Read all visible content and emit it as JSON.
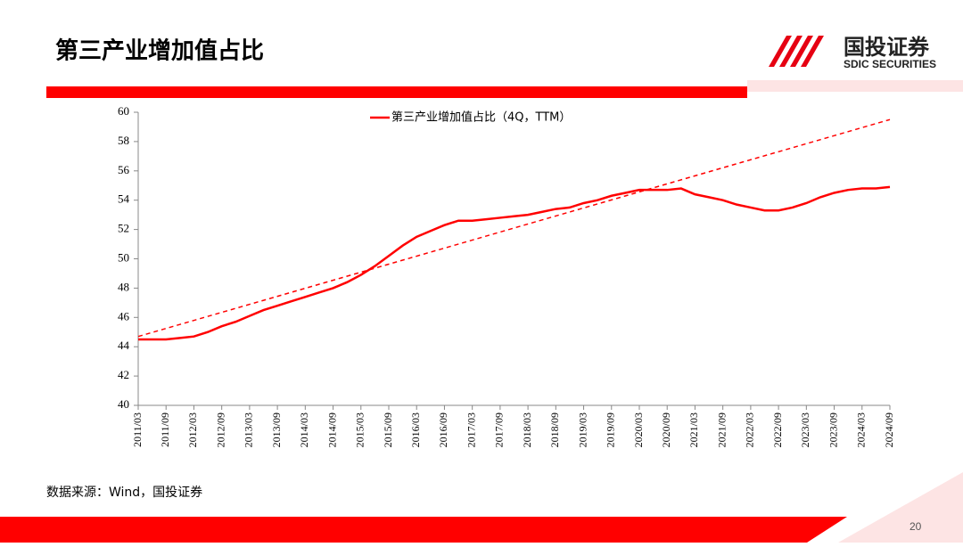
{
  "header": {
    "title": "第三产业增加值占比",
    "logo": "国投证券",
    "logo_sub": "SDIC SECURITIES"
  },
  "footer": {
    "source": "数据来源：Wind，国投证券",
    "page": "20"
  },
  "chart_data": {
    "type": "line",
    "categories": [
      "2011/03",
      null,
      "2011/09",
      null,
      "2012/03",
      null,
      "2012/09",
      null,
      "2013/03",
      null,
      "2013/09",
      null,
      "2014/03",
      null,
      "2014/09",
      null,
      "2015/03",
      null,
      "2015/09",
      null,
      "2016/03",
      null,
      "2016/09",
      null,
      "2017/03",
      null,
      "2017/09",
      null,
      "2018/03",
      null,
      "2018/09",
      null,
      "2019/03",
      null,
      "2019/09",
      null,
      "2020/03",
      null,
      "2020/09",
      null,
      "2021/03",
      null,
      "2021/09",
      null,
      "2022/03",
      null,
      "2022/09",
      null,
      "2023/03",
      null,
      "2023/09",
      null,
      "2024/03",
      null,
      "2024/09"
    ],
    "series": [
      {
        "name": "第三产业增加值占比（4Q，TTM）",
        "color": "#ff0000",
        "values": [
          44.5,
          44.5,
          44.5,
          44.6,
          44.7,
          45.0,
          45.4,
          45.7,
          46.1,
          46.5,
          46.8,
          47.1,
          47.4,
          47.7,
          48.0,
          48.4,
          48.9,
          49.5,
          50.2,
          50.9,
          51.5,
          51.9,
          52.3,
          52.6,
          52.6,
          52.7,
          52.8,
          52.9,
          53.0,
          53.2,
          53.4,
          53.5,
          53.8,
          54.0,
          54.3,
          54.5,
          54.7,
          54.7,
          54.7,
          54.8,
          54.4,
          54.2,
          54.0,
          53.7,
          53.5,
          53.3,
          53.3,
          53.5,
          53.8,
          54.2,
          54.5,
          54.7,
          54.8,
          54.8,
          54.9
        ]
      },
      {
        "color": "#ff0000",
        "dashed": true,
        "values": [
          44.7,
          null,
          null,
          null,
          null,
          null,
          null,
          null,
          null,
          null,
          null,
          null,
          null,
          null,
          null,
          null,
          null,
          null,
          null,
          null,
          null,
          null,
          null,
          null,
          null,
          null,
          null,
          null,
          null,
          null,
          null,
          null,
          null,
          null,
          null,
          null,
          null,
          null,
          null,
          null,
          null,
          null,
          null,
          null,
          null,
          null,
          null,
          null,
          null,
          null,
          null,
          null,
          null,
          null,
          59.5
        ]
      }
    ],
    "ylim": [
      40,
      60
    ],
    "yticks": [
      40,
      42,
      44,
      46,
      48,
      50,
      52,
      54,
      56,
      58,
      60
    ],
    "legend": "top"
  }
}
